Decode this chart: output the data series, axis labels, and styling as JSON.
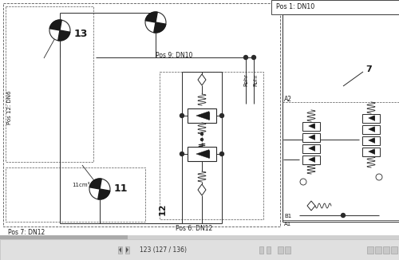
{
  "bg_color": "#f2f2f2",
  "diagram_bg": "#ffffff",
  "line_color": "#2a2a2a",
  "dash_color": "#555555",
  "text_color": "#1a1a1a",
  "toolbar_bg": "#e0e0e0",
  "toolbar_text": "#333333",
  "labels": {
    "pos1": "Pos 1: DN10",
    "pos6": "Pos 6: DN12",
    "pos7": "Pos 7: DN12",
    "pos9": "Pos 9: DN10",
    "pos12_dn": "Pos 12: DN6",
    "num13": "13",
    "num11": "11",
    "num12": "12",
    "rohr1": "Rohr",
    "rohr2": "Rohr",
    "a2": "A2",
    "a1": "A1",
    "b1": "B1",
    "num7": "7",
    "flow11": "11cm³",
    "toolbar_page": "123 (127 / 136)"
  },
  "figsize": [
    5.0,
    3.26
  ],
  "dpi": 100
}
